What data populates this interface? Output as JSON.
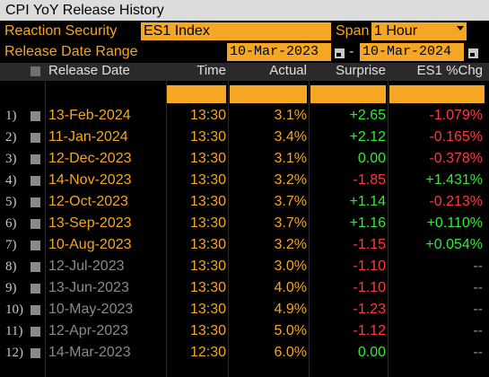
{
  "title": "CPI YoY Release History",
  "params": {
    "reaction_label": "Reaction Security",
    "reaction_value": "ES1 Index",
    "span_label": "Span",
    "span_value": "1 Hour",
    "range_label": "Release Date Range",
    "range_start": "10-Mar-2023",
    "range_sep": "-",
    "range_end": "10-Mar-2024"
  },
  "headers": {
    "release_date": "Release Date",
    "time": "Time",
    "actual": "Actual",
    "surprise": "Surprise",
    "pct_chg": "ES1 %Chg"
  },
  "colors": {
    "accent": "#f5a623",
    "positive": "#35e83a",
    "negative": "#ff3b3b",
    "muted": "#8a8a8a"
  },
  "rows": [
    {
      "num": "1)",
      "date": "13-Feb-2024",
      "time": "13:30",
      "actual": "3.1%",
      "surprise": "+2.65",
      "chg": "-1.079%"
    },
    {
      "num": "2)",
      "date": "11-Jan-2024",
      "time": "13:30",
      "actual": "3.4%",
      "surprise": "+2.12",
      "chg": "-0.165%"
    },
    {
      "num": "3)",
      "date": "12-Dec-2023",
      "time": "13:30",
      "actual": "3.1%",
      "surprise": "0.00",
      "chg": "-0.378%"
    },
    {
      "num": "4)",
      "date": "14-Nov-2023",
      "time": "13:30",
      "actual": "3.2%",
      "surprise": "-1.85",
      "chg": "+1.431%"
    },
    {
      "num": "5)",
      "date": "12-Oct-2023",
      "time": "13:30",
      "actual": "3.7%",
      "surprise": "+1.14",
      "chg": "-0.213%"
    },
    {
      "num": "6)",
      "date": "13-Sep-2023",
      "time": "13:30",
      "actual": "3.7%",
      "surprise": "+1.16",
      "chg": "+0.110%"
    },
    {
      "num": "7)",
      "date": "10-Aug-2023",
      "time": "13:30",
      "actual": "3.2%",
      "surprise": "-1.15",
      "chg": "+0.054%"
    },
    {
      "num": "8)",
      "date": "12-Jul-2023",
      "time": "13:30",
      "actual": "3.0%",
      "surprise": "-1.10",
      "chg": "--"
    },
    {
      "num": "9)",
      "date": "13-Jun-2023",
      "time": "13:30",
      "actual": "4.0%",
      "surprise": "-1.10",
      "chg": "--"
    },
    {
      "num": "10)",
      "date": "10-May-2023",
      "time": "13:30",
      "actual": "4.9%",
      "surprise": "-1.23",
      "chg": "--"
    },
    {
      "num": "11)",
      "date": "12-Apr-2023",
      "time": "13:30",
      "actual": "5.0%",
      "surprise": "-1.12",
      "chg": "--"
    },
    {
      "num": "12)",
      "date": "14-Mar-2023",
      "time": "12:30",
      "actual": "6.0%",
      "surprise": "0.00",
      "chg": "--"
    }
  ]
}
